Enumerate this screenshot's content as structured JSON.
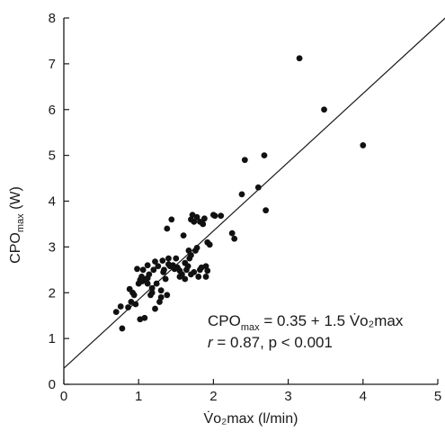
{
  "chart_data": {
    "type": "scatter",
    "xlabel": "V̇o₂max (l/min)",
    "ylabel_main": "CPO",
    "ylabel_sub": "max",
    "ylabel_unit": " (W)",
    "xlim": [
      0,
      5
    ],
    "ylim": [
      0,
      8
    ],
    "x_ticks": [
      "0",
      "1",
      "2",
      "3",
      "4",
      "5"
    ],
    "y_ticks": [
      "0",
      "1",
      "2",
      "3",
      "4",
      "5",
      "6",
      "7",
      "8"
    ],
    "grid": false,
    "regression": {
      "intercept": 0.35,
      "slope": 1.5,
      "equation_main": "CPO",
      "equation_sub": "max",
      "equation_rest": " = 0.35 + 1.5 V̇o₂max",
      "stats_r": "r",
      "stats_rest": " = 0.87, p < 0.001"
    },
    "x": [
      0.7,
      0.78,
      0.76,
      0.86,
      0.88,
      0.9,
      0.92,
      0.94,
      0.96,
      0.98,
      1.0,
      1.02,
      1.04,
      1.05,
      1.06,
      1.08,
      1.1,
      1.12,
      1.12,
      1.14,
      1.16,
      1.18,
      1.2,
      1.22,
      1.22,
      1.24,
      1.26,
      1.28,
      1.3,
      1.3,
      1.32,
      1.34,
      1.36,
      1.38,
      1.38,
      1.4,
      1.4,
      1.42,
      1.44,
      1.46,
      1.5,
      1.52,
      1.55,
      1.55,
      1.58,
      1.6,
      1.62,
      1.64,
      1.66,
      1.68,
      1.7,
      1.7,
      1.72,
      1.74,
      1.74,
      1.76,
      1.78,
      1.8,
      1.82,
      1.82,
      1.84,
      1.86,
      1.88,
      1.9,
      1.92,
      1.92,
      1.95,
      2.0,
      2.02,
      2.1,
      2.25,
      2.28,
      2.38,
      2.42,
      2.6,
      2.68,
      2.7,
      3.15,
      3.48,
      4.0,
      1.18,
      1.02,
      1.48,
      1.62,
      1.78,
      1.7,
      1.9,
      1.33,
      1.12,
      1.67
    ],
    "y": [
      1.58,
      1.22,
      1.7,
      1.68,
      2.08,
      1.8,
      2.0,
      1.95,
      1.75,
      2.52,
      2.2,
      1.42,
      2.35,
      2.25,
      2.5,
      1.45,
      2.3,
      2.6,
      2.2,
      2.4,
      1.95,
      2.1,
      2.5,
      2.68,
      1.65,
      2.2,
      2.58,
      1.8,
      2.05,
      1.9,
      2.7,
      2.5,
      2.3,
      1.95,
      3.4,
      2.75,
      2.62,
      2.58,
      3.6,
      2.6,
      2.75,
      2.55,
      2.48,
      2.35,
      2.4,
      3.25,
      2.3,
      2.5,
      2.58,
      2.75,
      2.82,
      2.4,
      3.7,
      2.45,
      3.55,
      2.92,
      3.65,
      2.35,
      2.5,
      3.55,
      2.55,
      3.5,
      3.62,
      2.35,
      2.48,
      3.1,
      3.05,
      3.7,
      3.68,
      3.68,
      3.3,
      3.18,
      4.15,
      4.9,
      4.3,
      5.0,
      3.8,
      7.12,
      6.0,
      5.22,
      2.0,
      2.28,
      2.52,
      2.65,
      2.98,
      3.6,
      2.58,
      2.45,
      2.32,
      2.92
    ]
  }
}
